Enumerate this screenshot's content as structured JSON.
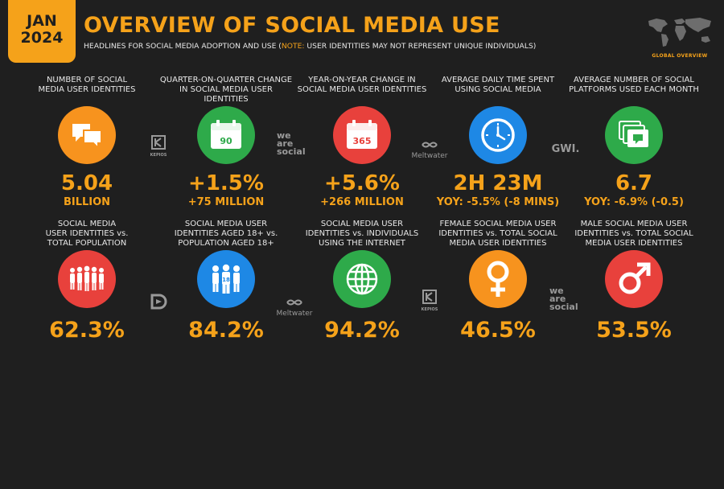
{
  "header": {
    "date_month": "JAN",
    "date_year": "2024",
    "title": "OVERVIEW OF SOCIAL MEDIA USE",
    "subtitle_pre": "HEADLINES FOR SOCIAL MEDIA ADOPTION AND USE (",
    "subtitle_note": "NOTE:",
    "subtitle_post": " USER IDENTITIES MAY NOT REPRESENT UNIQUE INDIVIDUALS)",
    "badge_label": "GLOBAL OVERVIEW"
  },
  "colors": {
    "accent": "#f5a21a",
    "orange": "#f7931e",
    "green": "#2eaa4a",
    "red": "#e8413c",
    "blue": "#1e88e5",
    "background": "#1f1f1f"
  },
  "row1": [
    {
      "label_1": "NUMBER OF SOCIAL",
      "label_2": "MEDIA USER IDENTITIES",
      "value": "5.04",
      "sub": "BILLION",
      "icon": "chat-bubbles-icon"
    },
    {
      "label_1": "QUARTER-ON-QUARTER CHANGE",
      "label_2": "IN SOCIAL MEDIA USER IDENTITIES",
      "value": "+1.5%",
      "sub": "+75 MILLION",
      "icon": "calendar-icon",
      "icon_text": "90"
    },
    {
      "label_1": "YEAR-ON-YEAR CHANGE IN",
      "label_2": "SOCIAL MEDIA USER IDENTITIES",
      "value": "+5.6%",
      "sub": "+266 MILLION",
      "icon": "calendar-icon",
      "icon_text": "365"
    },
    {
      "label_1": "AVERAGE DAILY TIME SPENT",
      "label_2": "USING SOCIAL MEDIA",
      "value": "2H 23M",
      "sub": "YOY: -5.5% (-8 MINS)",
      "icon": "clock-icon"
    },
    {
      "label_1": "AVERAGE NUMBER OF SOCIAL",
      "label_2": "PLATFORMS USED EACH MONTH",
      "value": "6.7",
      "sub": "YOY: -6.9% (-0.5)",
      "icon": "stacked-chat-icon"
    }
  ],
  "row2": [
    {
      "label_1": "SOCIAL MEDIA",
      "label_2": "USER IDENTITIES vs.",
      "label_3": "TOTAL POPULATION",
      "value": "62.3%",
      "icon": "crowd-icon"
    },
    {
      "label_1": "SOCIAL MEDIA USER",
      "label_2": "IDENTITIES AGED 18+ vs.",
      "label_3": "POPULATION AGED 18+",
      "value": "84.2%",
      "icon": "adults-18-icon",
      "icon_text": "18"
    },
    {
      "label_1": "SOCIAL MEDIA USER",
      "label_2": "IDENTITIES vs. INDIVIDUALS",
      "label_3": "USING THE INTERNET",
      "value": "94.2%",
      "icon": "globe-icon"
    },
    {
      "label_1": "FEMALE SOCIAL MEDIA USER",
      "label_2": "IDENTITIES vs. TOTAL SOCIAL",
      "label_3": "MEDIA USER IDENTITIES",
      "value": "46.5%",
      "icon": "female-symbol-icon"
    },
    {
      "label_1": "MALE SOCIAL MEDIA USER",
      "label_2": "IDENTITIES vs. TOTAL SOCIAL",
      "label_3": "MEDIA USER IDENTITIES",
      "value": "53.5%",
      "icon": "male-symbol-icon"
    }
  ],
  "partners": {
    "kepios": "KEPIOS",
    "we": "we",
    "are": "are",
    "social": "social",
    "meltwater": "Meltwater",
    "gwi": "GWI."
  }
}
